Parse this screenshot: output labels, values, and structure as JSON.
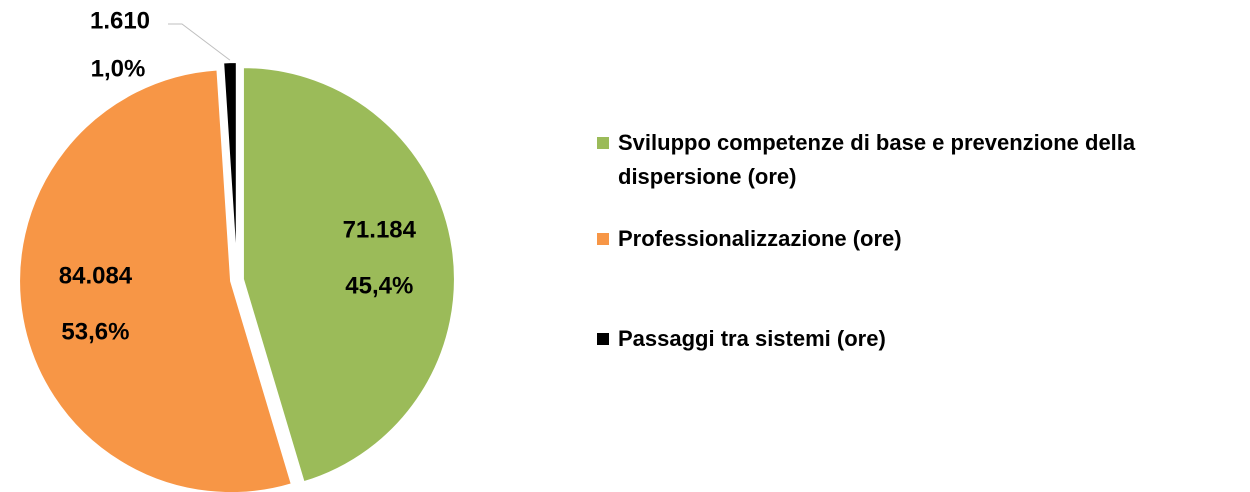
{
  "chart_data": {
    "type": "pie",
    "categories": [
      "Sviluppo competenze di base e prevenzione della dispersione (ore)",
      "Professionalizzazione (ore)",
      "Passaggi tra sistemi (ore)"
    ],
    "values": [
      71184,
      84084,
      1610
    ],
    "value_labels": [
      "71.184",
      "84.084",
      "1.610"
    ],
    "percents": [
      45.4,
      53.6,
      1.0
    ],
    "percent_labels": [
      "45,4%",
      "53,6%",
      "1,0%"
    ],
    "colors": [
      "#9bbb59",
      "#f79646",
      "#000000"
    ],
    "legend": "right"
  }
}
